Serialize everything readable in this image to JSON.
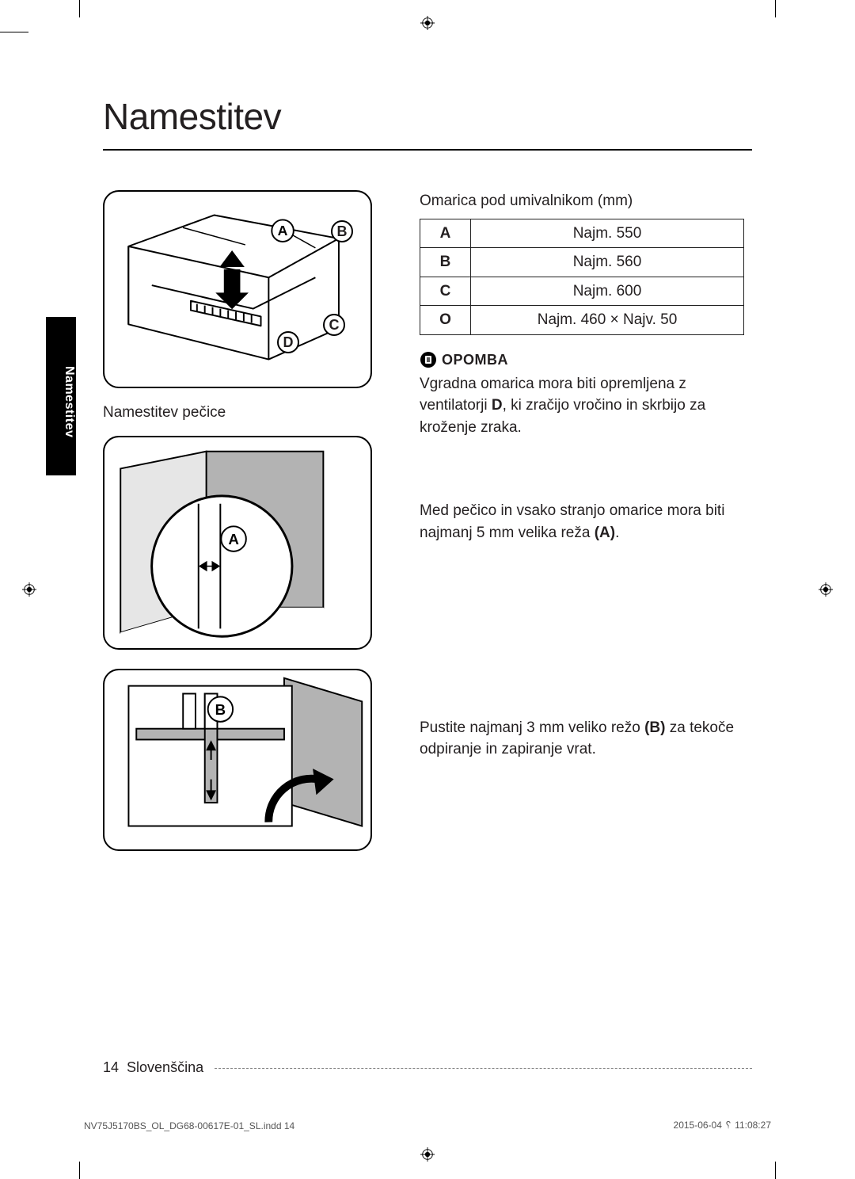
{
  "page": {
    "title": "Namestitev",
    "side_tab": "Namestitev",
    "subheading": "Namestitev pečice",
    "page_number": "14",
    "language": "Slovenščina",
    "meta_left": "NV75J5170BS_OL_DG68-00617E-01_SL.indd   14",
    "meta_right": "2015-06-04   ␦ 11:08:27"
  },
  "table": {
    "caption": "Omarica pod umivalnikom (mm)",
    "rows": [
      {
        "key": "A",
        "value": "Najm. 550"
      },
      {
        "key": "B",
        "value": "Najm. 560"
      },
      {
        "key": "C",
        "value": "Najm. 600"
      },
      {
        "key": "O",
        "value": "Najm. 460 × Najv. 50"
      }
    ]
  },
  "note": {
    "label": "OPOMBA",
    "body_pre": "Vgradna omarica mora biti opremljena z ventilatorji ",
    "body_bold": "D",
    "body_post": ", ki zračijo vročino in skrbijo za kroženje zraka."
  },
  "para2": {
    "pre": "Med pečico in vsako stranjo omarice mora biti najmanj 5 mm velika reža ",
    "bold": "(A)",
    "post": "."
  },
  "para3": {
    "pre": "Pustite najmanj 3 mm veliko režo ",
    "bold": "(B)",
    "post": " za tekoče odpiranje in zapiranje vrat."
  },
  "figure1": {
    "labels": {
      "A": "A",
      "B": "B",
      "C": "C",
      "D": "D"
    }
  },
  "figure2": {
    "label": "A"
  },
  "figure3": {
    "label": "B"
  },
  "colors": {
    "text": "#231f20",
    "border": "#000000",
    "fill_mid": "#b3b3b3",
    "fill_light": "#e6e6e6",
    "fill_dark": "#6f6f6f"
  }
}
